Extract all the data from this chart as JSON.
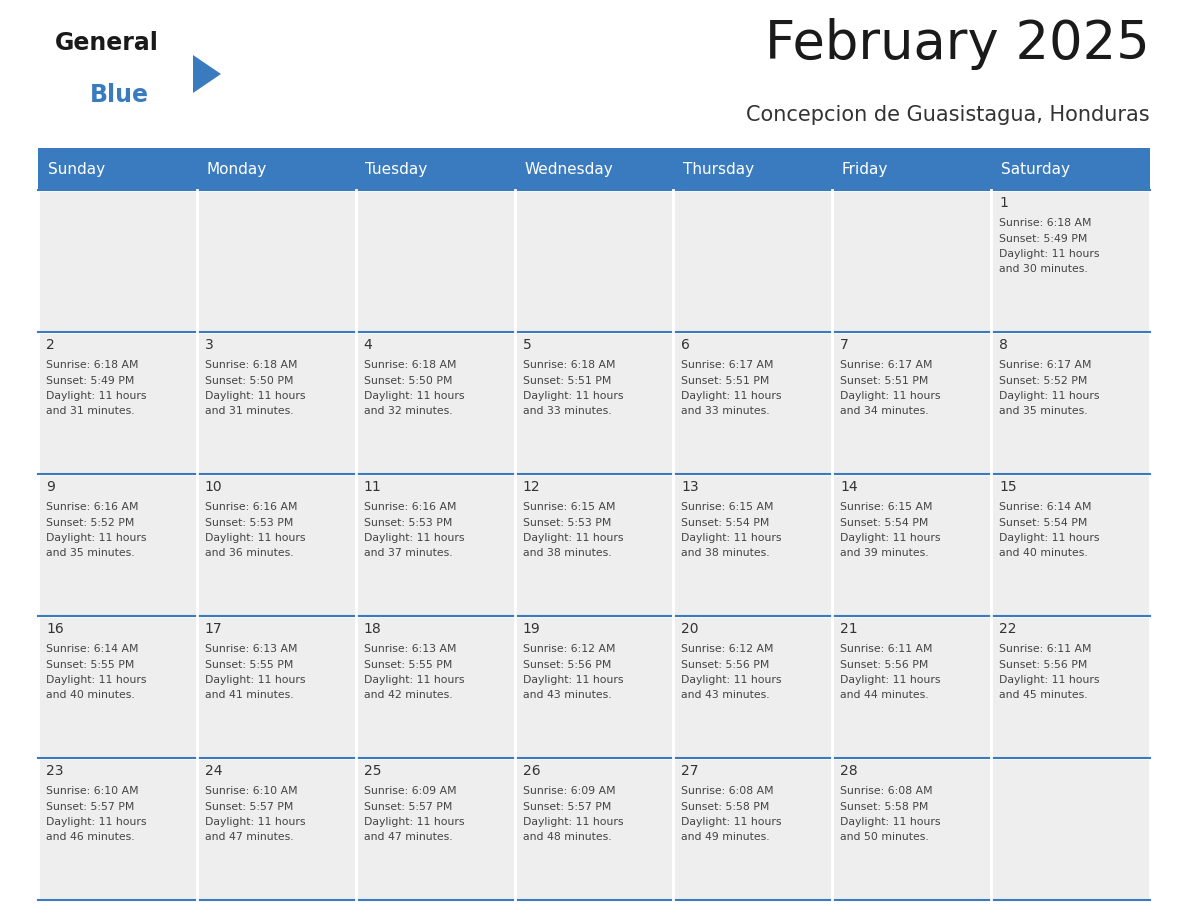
{
  "title": "February 2025",
  "subtitle": "Concepcion de Guasistagua, Honduras",
  "header_color": "#3a7bbf",
  "header_text_color": "#ffffff",
  "days_of_week": [
    "Sunday",
    "Monday",
    "Tuesday",
    "Wednesday",
    "Thursday",
    "Friday",
    "Saturday"
  ],
  "cell_bg_color": "#eeeeee",
  "border_color": "#3a7bbf",
  "text_color": "#444444",
  "day_num_color": "#333333",
  "calendar": [
    [
      null,
      null,
      null,
      null,
      null,
      null,
      {
        "day": 1,
        "sunrise": "6:18 AM",
        "sunset": "5:49 PM",
        "daylight": "11 hours and 30 minutes."
      }
    ],
    [
      {
        "day": 2,
        "sunrise": "6:18 AM",
        "sunset": "5:49 PM",
        "daylight": "11 hours and 31 minutes."
      },
      {
        "day": 3,
        "sunrise": "6:18 AM",
        "sunset": "5:50 PM",
        "daylight": "11 hours and 31 minutes."
      },
      {
        "day": 4,
        "sunrise": "6:18 AM",
        "sunset": "5:50 PM",
        "daylight": "11 hours and 32 minutes."
      },
      {
        "day": 5,
        "sunrise": "6:18 AM",
        "sunset": "5:51 PM",
        "daylight": "11 hours and 33 minutes."
      },
      {
        "day": 6,
        "sunrise": "6:17 AM",
        "sunset": "5:51 PM",
        "daylight": "11 hours and 33 minutes."
      },
      {
        "day": 7,
        "sunrise": "6:17 AM",
        "sunset": "5:51 PM",
        "daylight": "11 hours and 34 minutes."
      },
      {
        "day": 8,
        "sunrise": "6:17 AM",
        "sunset": "5:52 PM",
        "daylight": "11 hours and 35 minutes."
      }
    ],
    [
      {
        "day": 9,
        "sunrise": "6:16 AM",
        "sunset": "5:52 PM",
        "daylight": "11 hours and 35 minutes."
      },
      {
        "day": 10,
        "sunrise": "6:16 AM",
        "sunset": "5:53 PM",
        "daylight": "11 hours and 36 minutes."
      },
      {
        "day": 11,
        "sunrise": "6:16 AM",
        "sunset": "5:53 PM",
        "daylight": "11 hours and 37 minutes."
      },
      {
        "day": 12,
        "sunrise": "6:15 AM",
        "sunset": "5:53 PM",
        "daylight": "11 hours and 38 minutes."
      },
      {
        "day": 13,
        "sunrise": "6:15 AM",
        "sunset": "5:54 PM",
        "daylight": "11 hours and 38 minutes."
      },
      {
        "day": 14,
        "sunrise": "6:15 AM",
        "sunset": "5:54 PM",
        "daylight": "11 hours and 39 minutes."
      },
      {
        "day": 15,
        "sunrise": "6:14 AM",
        "sunset": "5:54 PM",
        "daylight": "11 hours and 40 minutes."
      }
    ],
    [
      {
        "day": 16,
        "sunrise": "6:14 AM",
        "sunset": "5:55 PM",
        "daylight": "11 hours and 40 minutes."
      },
      {
        "day": 17,
        "sunrise": "6:13 AM",
        "sunset": "5:55 PM",
        "daylight": "11 hours and 41 minutes."
      },
      {
        "day": 18,
        "sunrise": "6:13 AM",
        "sunset": "5:55 PM",
        "daylight": "11 hours and 42 minutes."
      },
      {
        "day": 19,
        "sunrise": "6:12 AM",
        "sunset": "5:56 PM",
        "daylight": "11 hours and 43 minutes."
      },
      {
        "day": 20,
        "sunrise": "6:12 AM",
        "sunset": "5:56 PM",
        "daylight": "11 hours and 43 minutes."
      },
      {
        "day": 21,
        "sunrise": "6:11 AM",
        "sunset": "5:56 PM",
        "daylight": "11 hours and 44 minutes."
      },
      {
        "day": 22,
        "sunrise": "6:11 AM",
        "sunset": "5:56 PM",
        "daylight": "11 hours and 45 minutes."
      }
    ],
    [
      {
        "day": 23,
        "sunrise": "6:10 AM",
        "sunset": "5:57 PM",
        "daylight": "11 hours and 46 minutes."
      },
      {
        "day": 24,
        "sunrise": "6:10 AM",
        "sunset": "5:57 PM",
        "daylight": "11 hours and 47 minutes."
      },
      {
        "day": 25,
        "sunrise": "6:09 AM",
        "sunset": "5:57 PM",
        "daylight": "11 hours and 47 minutes."
      },
      {
        "day": 26,
        "sunrise": "6:09 AM",
        "sunset": "5:57 PM",
        "daylight": "11 hours and 48 minutes."
      },
      {
        "day": 27,
        "sunrise": "6:08 AM",
        "sunset": "5:58 PM",
        "daylight": "11 hours and 49 minutes."
      },
      {
        "day": 28,
        "sunrise": "6:08 AM",
        "sunset": "5:58 PM",
        "daylight": "11 hours and 50 minutes."
      },
      null
    ]
  ],
  "logo_general_color": "#1a1a1a",
  "logo_blue_color": "#3a7bbf",
  "logo_triangle_color": "#3a7bbf",
  "title_fontsize": 38,
  "subtitle_fontsize": 15,
  "header_fontsize": 11,
  "day_num_fontsize": 10,
  "cell_text_fontsize": 7.8
}
